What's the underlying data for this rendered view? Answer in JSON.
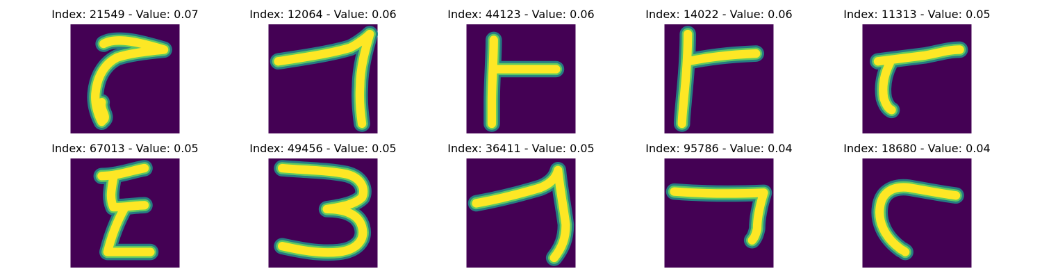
{
  "figure": {
    "colors": {
      "background": "#440154",
      "stroke_edge": "#21918c",
      "stroke_mid": "#5ec962",
      "stroke_core": "#fde725"
    },
    "panels": [
      {
        "title": "Index: 21549 - Value: 0.07",
        "index": 21549,
        "value": 0.07,
        "depicts": "hook-shaped stroke resembling a 7"
      },
      {
        "title": "Index: 12064 - Value: 0.06",
        "index": 12064,
        "value": 0.06,
        "depicts": "digit 7"
      },
      {
        "title": "Index: 44123 - Value: 0.06",
        "index": 44123,
        "value": 0.06,
        "depicts": "T-like stroke"
      },
      {
        "title": "Index: 14022 - Value: 0.06",
        "index": 14022,
        "value": 0.06,
        "depicts": "T-like stroke"
      },
      {
        "title": "Index: 11313 - Value: 0.05",
        "index": 11313,
        "value": 0.05,
        "depicts": "slanted 7-like stroke"
      },
      {
        "title": "Index: 67013 - Value: 0.05",
        "index": 67013,
        "value": 0.05,
        "depicts": "zigzag stroke resembling a 3"
      },
      {
        "title": "Index: 49456 - Value: 0.05",
        "index": 49456,
        "value": 0.05,
        "depicts": "digit 3"
      },
      {
        "title": "Index: 36411 - Value: 0.05",
        "index": 36411,
        "value": 0.05,
        "depicts": "digit 7"
      },
      {
        "title": "Index: 95786 - Value: 0.04",
        "index": 95786,
        "value": 0.04,
        "depicts": "digit 7"
      },
      {
        "title": "Index: 18680 - Value: 0.04",
        "index": 18680,
        "value": 0.04,
        "depicts": "curved hook stroke"
      }
    ]
  }
}
